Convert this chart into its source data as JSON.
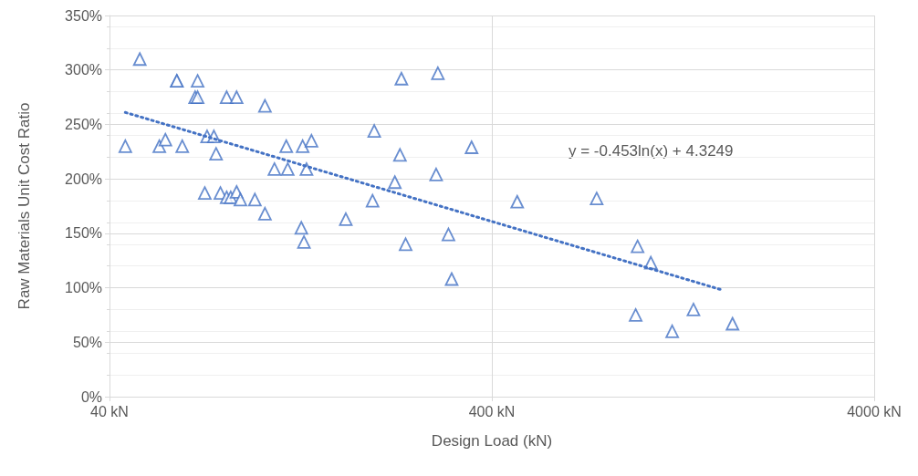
{
  "chart_data": {
    "type": "scatter",
    "xlabel": "Design Load (kN)",
    "ylabel": "Raw Materials Unit Cost Ratio",
    "log": "x",
    "grid": true,
    "marker": "triangle",
    "xlim": [
      40,
      4000
    ],
    "xticks": [
      {
        "value": 40,
        "label": "40 kN"
      },
      {
        "value": 400,
        "label": "400 kN"
      },
      {
        "value": 4000,
        "label": "4000 kN"
      }
    ],
    "ylim": [
      0,
      350
    ],
    "yticks": [
      {
        "value": 0,
        "label": "0%"
      },
      {
        "value": 50,
        "label": "50%"
      },
      {
        "value": 100,
        "label": "100%"
      },
      {
        "value": 150,
        "label": "150%"
      },
      {
        "value": 200,
        "label": "200%"
      },
      {
        "value": 250,
        "label": "250%"
      },
      {
        "value": 300,
        "label": "300%"
      },
      {
        "value": 350,
        "label": "350%"
      }
    ],
    "annotations": [
      "y = -0.453ln(x) + 4.3249"
    ],
    "series": [
      {
        "color": "#4472c4",
        "x": [
          44,
          48,
          54,
          56,
          60,
          60,
          68,
          62,
          67,
          68,
          81,
          86,
          102,
          72,
          75,
          76,
          71,
          78,
          81,
          83,
          86,
          88,
          96,
          102,
          127,
          129,
          166,
          116,
          128,
          135,
          108,
          117,
          131,
          232,
          289,
          197,
          230,
          354,
          286,
          223,
          195,
          308,
          238,
          314,
          466,
          752,
          962,
          1042,
          951,
          1185,
          1347,
          1704
        ],
        "values": [
          230,
          310,
          230,
          236,
          290,
          290,
          290,
          230,
          275,
          275,
          275,
          275,
          267,
          239,
          239,
          223,
          187,
          187,
          183,
          183,
          188,
          181,
          181,
          168,
          155,
          142,
          163,
          230,
          230,
          235,
          209,
          209,
          209,
          292,
          297,
          244,
          222,
          229,
          204,
          197,
          180,
          149,
          140,
          108,
          179,
          182,
          138,
          123,
          75,
          60,
          80,
          67
        ]
      },
      {
        "type": "line",
        "color": "#4472c4",
        "marker": "none",
        "line_style": "dotted",
        "x": [
          44,
          1600
        ],
        "values": [
          261,
          98
        ]
      }
    ]
  }
}
